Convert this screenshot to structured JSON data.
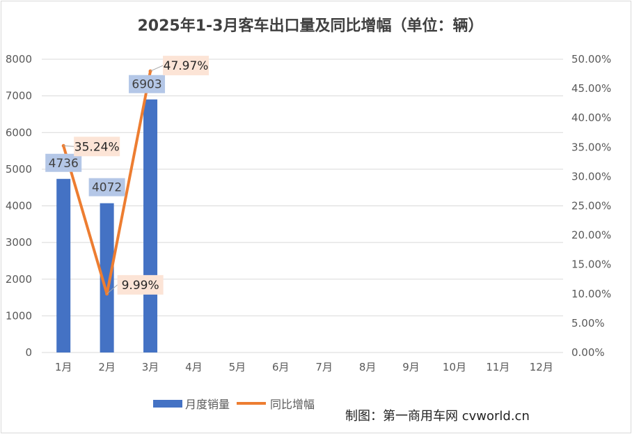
{
  "chart_data": {
    "type": "bar",
    "title": "2025年1-3月客车出口量及同比增幅（单位：辆）",
    "categories": [
      "1月",
      "2月",
      "3月",
      "4月",
      "5月",
      "6月",
      "7月",
      "8月",
      "9月",
      "10月",
      "11月",
      "12月"
    ],
    "series": [
      {
        "name": "月度销量",
        "type": "bar",
        "axis": "left",
        "color": "#4472c4",
        "values": [
          4736,
          4072,
          6903,
          null,
          null,
          null,
          null,
          null,
          null,
          null,
          null,
          null
        ],
        "labels": [
          "4736",
          "4072",
          "6903"
        ]
      },
      {
        "name": "同比增幅",
        "type": "line",
        "axis": "right",
        "color": "#ed7d31",
        "values": [
          35.24,
          9.99,
          47.97,
          null,
          null,
          null,
          null,
          null,
          null,
          null,
          null,
          null
        ],
        "labels": [
          "35.24%",
          "9.99%",
          "47.97%"
        ]
      }
    ],
    "y_left": {
      "min": 0,
      "max": 8000,
      "step": 1000,
      "ticks": [
        "0",
        "1000",
        "2000",
        "3000",
        "4000",
        "5000",
        "6000",
        "7000",
        "8000"
      ]
    },
    "y_right": {
      "min": 0,
      "max": 50,
      "step": 5,
      "ticks": [
        "0.00%",
        "5.00%",
        "10.00%",
        "15.00%",
        "20.00%",
        "25.00%",
        "30.00%",
        "35.00%",
        "40.00%",
        "45.00%",
        "50.00%"
      ]
    },
    "grid": true,
    "legend": "bottom"
  },
  "credit": "制图：第一商用车网 cvworld.cn"
}
